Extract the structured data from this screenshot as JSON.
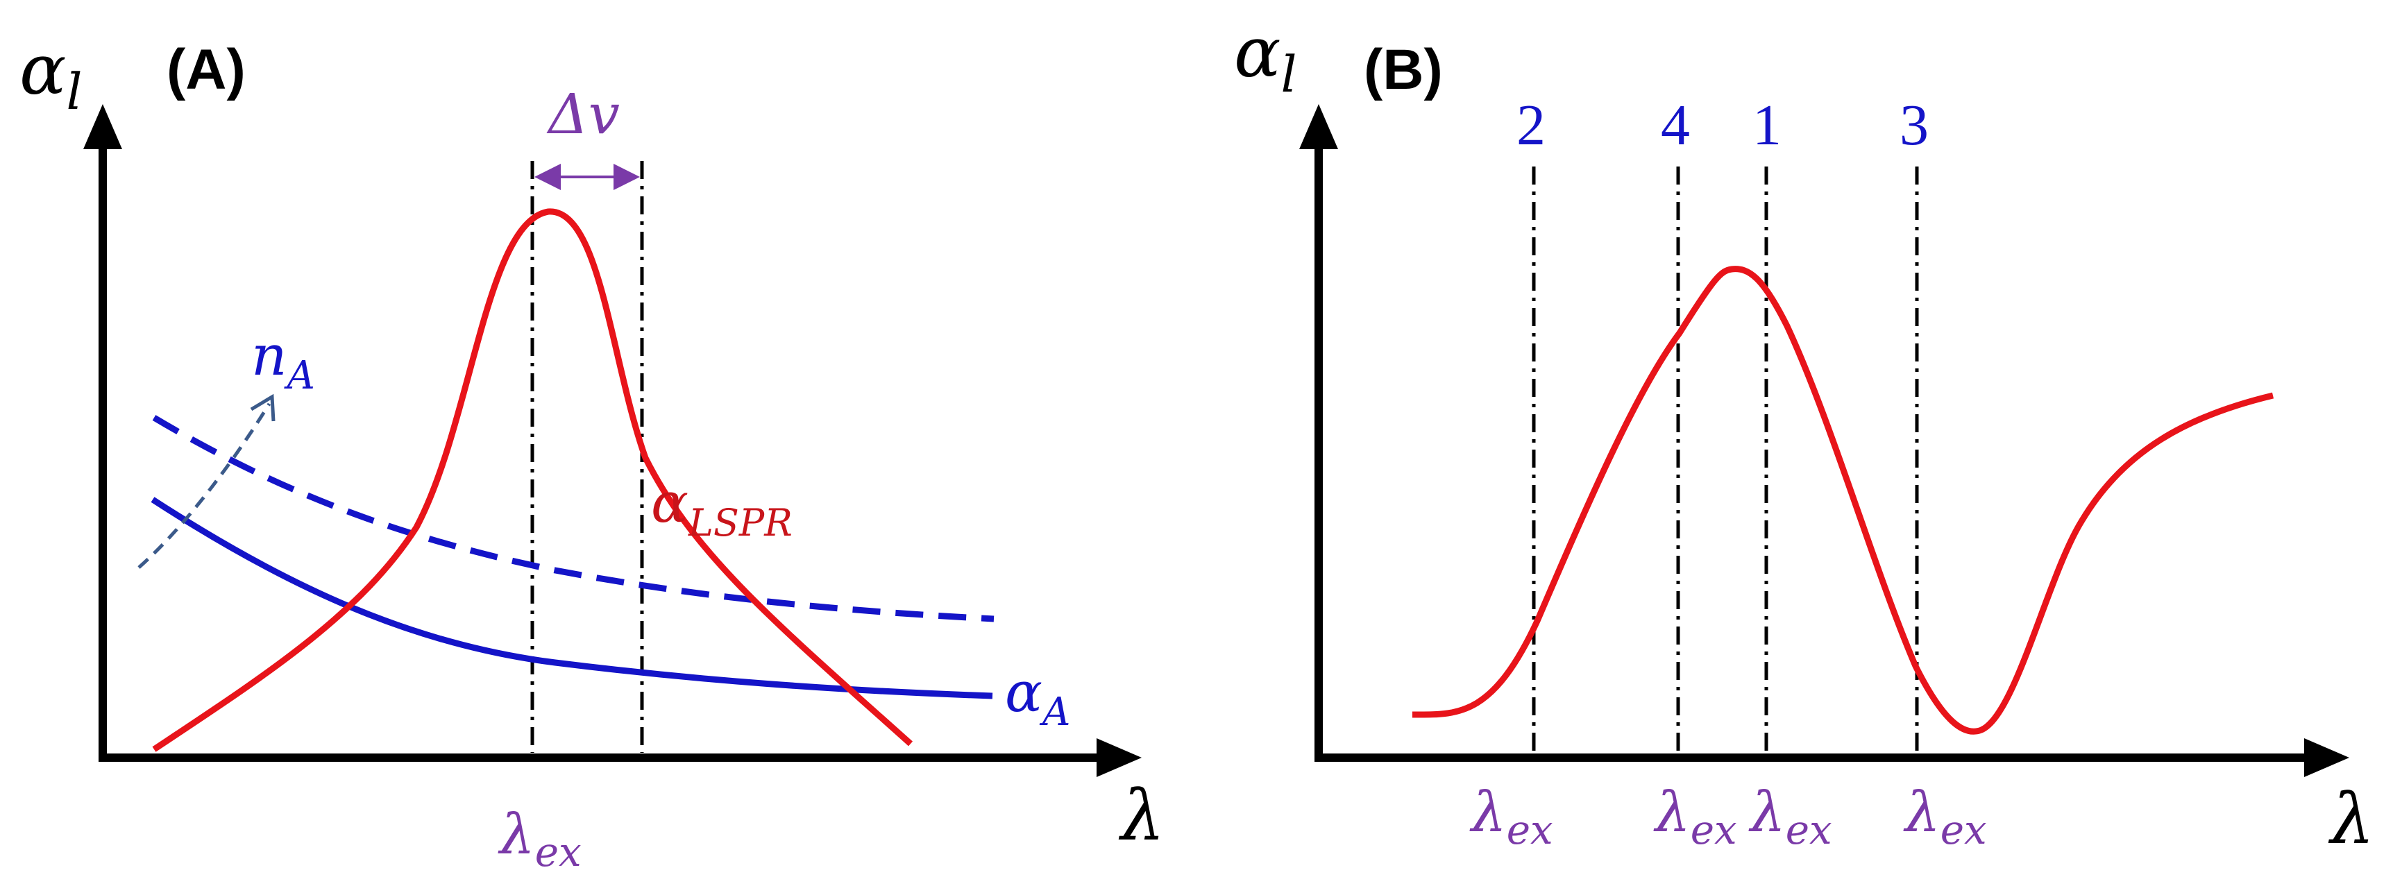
{
  "colors": {
    "axis": "#000000",
    "red": "#e8141a",
    "blue": "#1414c8",
    "purple": "#7a3aa8",
    "dashed_arrow": "#3b5a8a"
  },
  "panel_a": {
    "panel_label": "(A)",
    "y_axis_symbol": "α",
    "y_axis_sub": "l",
    "x_axis_symbol": "λ",
    "delta_v": "Δv",
    "n_a_symbol": "n",
    "n_a_sub": "A",
    "lspr_symbol": "α",
    "lspr_sub": "LSPR",
    "alpha_a_symbol": "α",
    "alpha_a_sub": "A",
    "lambda_ex_symbol": "λ",
    "lambda_ex_sub": "ex"
  },
  "panel_b": {
    "panel_label": "(B)",
    "y_axis_symbol": "α",
    "y_axis_sub": "l",
    "x_axis_symbol": "λ",
    "markers": [
      {
        "number": "2",
        "symbol": "λ",
        "sub": "ex"
      },
      {
        "number": "4",
        "symbol": "λ",
        "sub": "ex"
      },
      {
        "number": "1",
        "symbol": "λ",
        "sub": "ex"
      },
      {
        "number": "3",
        "symbol": "λ",
        "sub": "ex"
      }
    ]
  }
}
